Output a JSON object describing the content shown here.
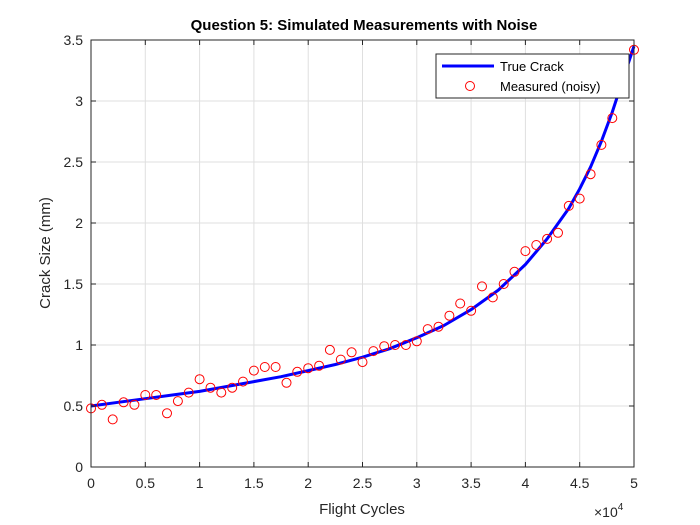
{
  "chart_data": {
    "type": "line",
    "title": "Question 5: Simulated Measurements with Noise",
    "xlabel": "Flight Cycles",
    "ylabel": "Crack Size (mm)",
    "x_exponent_label": "×10",
    "x_exponent": "4",
    "xlim": [
      0,
      50000
    ],
    "ylim": [
      0,
      3.5
    ],
    "x_ticks": [
      0,
      5000,
      10000,
      15000,
      20000,
      25000,
      30000,
      35000,
      40000,
      45000,
      50000
    ],
    "x_tick_labels": [
      "0",
      "0.5",
      "1",
      "1.5",
      "2",
      "2.5",
      "3",
      "3.5",
      "4",
      "4.5",
      "5"
    ],
    "y_ticks": [
      0,
      0.5,
      1,
      1.5,
      2,
      2.5,
      3,
      3.5
    ],
    "y_tick_labels": [
      "0",
      "0.5",
      "1",
      "1.5",
      "2",
      "2.5",
      "3",
      "3.5"
    ],
    "grid": true,
    "legend_position": "top-right",
    "series": [
      {
        "name": "True Crack",
        "style": "line",
        "color": "#0000ff",
        "x": [
          0,
          2500,
          5000,
          7500,
          10000,
          12500,
          15000,
          17500,
          20000,
          22500,
          25000,
          27500,
          30000,
          32500,
          35000,
          37500,
          40000,
          42000,
          44000,
          45000,
          46000,
          47000,
          48000,
          49000,
          50000
        ],
        "y": [
          0.5,
          0.53,
          0.56,
          0.59,
          0.62,
          0.66,
          0.7,
          0.74,
          0.79,
          0.84,
          0.9,
          0.97,
          1.06,
          1.16,
          1.29,
          1.45,
          1.66,
          1.87,
          2.12,
          2.28,
          2.46,
          2.67,
          2.91,
          3.18,
          3.45
        ]
      },
      {
        "name": "Measured (noisy)",
        "style": "markers",
        "color": "#ff0000",
        "x": [
          0,
          1000,
          2000,
          3000,
          4000,
          5000,
          6000,
          7000,
          8000,
          9000,
          10000,
          11000,
          12000,
          13000,
          14000,
          15000,
          16000,
          17000,
          18000,
          19000,
          20000,
          21000,
          22000,
          23000,
          24000,
          25000,
          26000,
          27000,
          28000,
          29000,
          30000,
          31000,
          32000,
          33000,
          34000,
          35000,
          36000,
          37000,
          38000,
          39000,
          40000,
          41000,
          42000,
          43000,
          44000,
          45000,
          46000,
          47000,
          48000,
          49000,
          50000
        ],
        "y": [
          0.48,
          0.51,
          0.39,
          0.53,
          0.51,
          0.59,
          0.59,
          0.44,
          0.54,
          0.61,
          0.72,
          0.65,
          0.61,
          0.65,
          0.7,
          0.79,
          0.82,
          0.82,
          0.69,
          0.78,
          0.81,
          0.83,
          0.96,
          0.88,
          0.94,
          0.86,
          0.95,
          0.99,
          1.0,
          1.0,
          1.03,
          1.13,
          1.15,
          1.24,
          1.34,
          1.28,
          1.48,
          1.39,
          1.5,
          1.6,
          1.77,
          1.82,
          1.87,
          1.92,
          2.14,
          2.2,
          2.4,
          2.64,
          2.86,
          3.1,
          3.42
        ]
      }
    ]
  }
}
